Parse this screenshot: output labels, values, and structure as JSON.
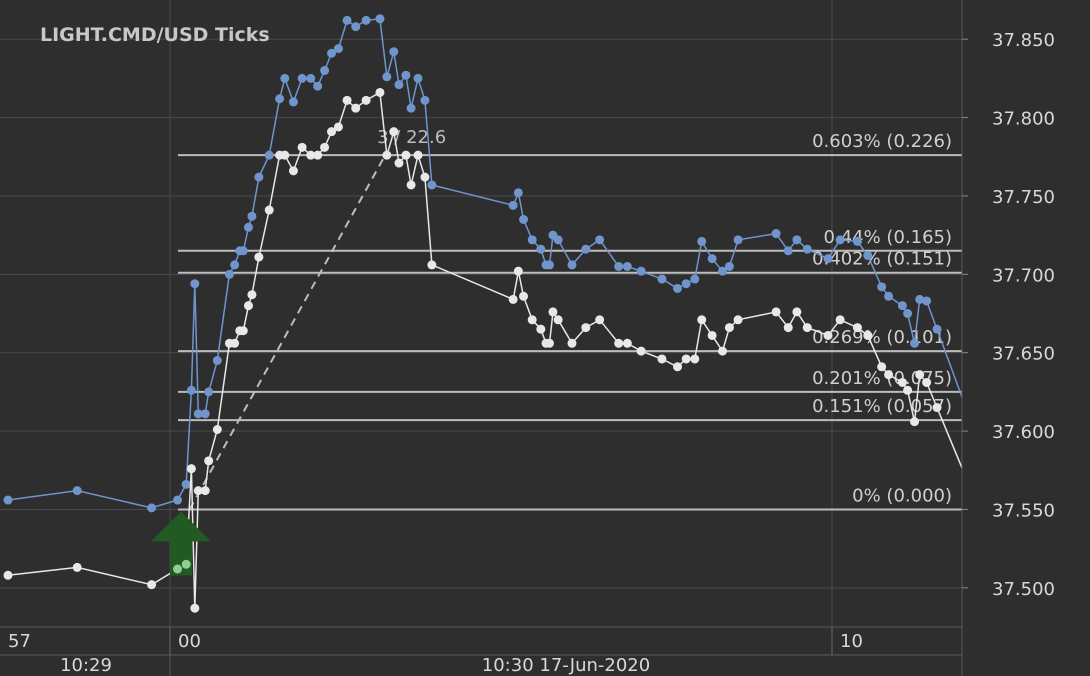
{
  "title": "LIGHT.CMD/USD  Ticks",
  "colors": {
    "background": "#2e2e2e",
    "grid": "#4a4a4a",
    "axis_text": "#d8d8d8",
    "ask_series": "#6f95cc",
    "bid_series": "#e8e8e8",
    "fib_line": "#bdbdbd",
    "buy_arrow": "#235a23"
  },
  "chart_data": {
    "type": "line",
    "title": "LIGHT.CMD/USD  Ticks",
    "ylim": [
      37.475,
      37.875
    ],
    "y_ticks": [
      37.85,
      37.8,
      37.75,
      37.7,
      37.65,
      37.6,
      37.55,
      37.5
    ],
    "y_tick_labels": [
      "37.850",
      "37.800",
      "37.750",
      "37.700",
      "37.650",
      "37.600",
      "37.550",
      "37.500"
    ],
    "x_time_labels": [
      "57",
      "00",
      "10"
    ],
    "x_date_labels": [
      "10:29",
      "10:30 17-Jun-2020"
    ],
    "grid": true,
    "series": [
      {
        "values": [
          [
            0.0,
            37.556
          ],
          [
            4.0,
            37.562
          ],
          [
            8.3,
            37.551
          ],
          [
            9.8,
            37.556
          ],
          [
            10.3,
            37.566
          ],
          [
            10.6,
            37.626
          ],
          [
            10.8,
            37.694
          ],
          [
            11.0,
            37.611
          ],
          [
            11.4,
            37.611
          ],
          [
            11.6,
            37.625
          ],
          [
            12.1,
            37.645
          ],
          [
            12.8,
            37.7
          ],
          [
            13.1,
            37.706
          ],
          [
            13.4,
            37.715
          ],
          [
            13.6,
            37.715
          ],
          [
            13.9,
            37.73
          ],
          [
            14.1,
            37.737
          ],
          [
            14.5,
            37.762
          ],
          [
            15.1,
            37.776
          ],
          [
            15.7,
            37.812
          ],
          [
            16.0,
            37.825
          ],
          [
            16.5,
            37.81
          ],
          [
            17.0,
            37.825
          ],
          [
            17.5,
            37.825
          ],
          [
            17.9,
            37.82
          ],
          [
            18.3,
            37.83
          ],
          [
            18.7,
            37.841
          ],
          [
            19.1,
            37.844
          ],
          [
            19.6,
            37.862
          ],
          [
            20.1,
            37.858
          ],
          [
            20.7,
            37.862
          ],
          [
            21.5,
            37.863
          ],
          [
            21.9,
            37.826
          ],
          [
            22.3,
            37.842
          ],
          [
            22.6,
            37.821
          ],
          [
            23.0,
            37.827
          ],
          [
            23.3,
            37.806
          ],
          [
            23.7,
            37.825
          ],
          [
            24.1,
            37.811
          ],
          [
            24.5,
            37.757
          ],
          [
            29.2,
            37.744
          ],
          [
            29.5,
            37.752
          ],
          [
            29.8,
            37.735
          ],
          [
            30.3,
            37.722
          ],
          [
            30.8,
            37.716
          ],
          [
            31.1,
            37.706
          ],
          [
            31.3,
            37.706
          ],
          [
            31.5,
            37.725
          ],
          [
            31.8,
            37.722
          ],
          [
            32.6,
            37.706
          ],
          [
            33.4,
            37.716
          ],
          [
            34.2,
            37.722
          ],
          [
            35.3,
            37.705
          ],
          [
            35.8,
            37.705
          ],
          [
            36.6,
            37.702
          ],
          [
            37.8,
            37.697
          ],
          [
            38.7,
            37.691
          ],
          [
            39.2,
            37.694
          ],
          [
            39.7,
            37.697
          ],
          [
            40.1,
            37.721
          ],
          [
            40.7,
            37.71
          ],
          [
            41.3,
            37.702
          ],
          [
            41.7,
            37.705
          ],
          [
            42.2,
            37.722
          ],
          [
            44.4,
            37.726
          ],
          [
            45.1,
            37.715
          ],
          [
            45.6,
            37.722
          ],
          [
            46.2,
            37.716
          ],
          [
            47.4,
            37.71
          ],
          [
            48.1,
            37.722
          ],
          [
            49.1,
            37.721
          ],
          [
            49.7,
            37.712
          ],
          [
            50.5,
            37.692
          ],
          [
            50.9,
            37.686
          ],
          [
            51.7,
            37.68
          ],
          [
            52.0,
            37.675
          ],
          [
            52.4,
            37.656
          ],
          [
            52.7,
            37.684
          ],
          [
            53.1,
            37.683
          ],
          [
            53.7,
            37.665
          ]
        ]
      },
      {
        "values": [
          [
            0.0,
            37.508
          ],
          [
            4.0,
            37.513
          ],
          [
            8.3,
            37.502
          ],
          [
            9.8,
            37.512
          ],
          [
            10.3,
            37.515
          ],
          [
            10.6,
            37.576
          ],
          [
            10.8,
            37.487
          ],
          [
            11.0,
            37.562
          ],
          [
            11.4,
            37.562
          ],
          [
            11.6,
            37.581
          ],
          [
            12.1,
            37.601
          ],
          [
            12.8,
            37.656
          ],
          [
            13.1,
            37.656
          ],
          [
            13.4,
            37.664
          ],
          [
            13.6,
            37.664
          ],
          [
            13.9,
            37.68
          ],
          [
            14.1,
            37.687
          ],
          [
            14.5,
            37.711
          ],
          [
            15.1,
            37.741
          ],
          [
            15.7,
            37.776
          ],
          [
            16.0,
            37.776
          ],
          [
            16.5,
            37.766
          ],
          [
            17.0,
            37.781
          ],
          [
            17.5,
            37.776
          ],
          [
            17.9,
            37.776
          ],
          [
            18.3,
            37.781
          ],
          [
            18.7,
            37.791
          ],
          [
            19.1,
            37.794
          ],
          [
            19.6,
            37.811
          ],
          [
            20.1,
            37.806
          ],
          [
            20.7,
            37.811
          ],
          [
            21.5,
            37.816
          ],
          [
            21.9,
            37.776
          ],
          [
            22.3,
            37.791
          ],
          [
            22.6,
            37.771
          ],
          [
            23.0,
            37.776
          ],
          [
            23.3,
            37.757
          ],
          [
            23.7,
            37.776
          ],
          [
            24.1,
            37.762
          ],
          [
            24.5,
            37.706
          ],
          [
            29.2,
            37.684
          ],
          [
            29.5,
            37.702
          ],
          [
            29.8,
            37.686
          ],
          [
            30.3,
            37.671
          ],
          [
            30.8,
            37.665
          ],
          [
            31.1,
            37.656
          ],
          [
            31.3,
            37.656
          ],
          [
            31.5,
            37.676
          ],
          [
            31.8,
            37.671
          ],
          [
            32.6,
            37.656
          ],
          [
            33.4,
            37.666
          ],
          [
            34.2,
            37.671
          ],
          [
            35.3,
            37.656
          ],
          [
            35.8,
            37.656
          ],
          [
            36.6,
            37.651
          ],
          [
            37.8,
            37.646
          ],
          [
            38.7,
            37.641
          ],
          [
            39.2,
            37.646
          ],
          [
            39.7,
            37.646
          ],
          [
            40.1,
            37.671
          ],
          [
            40.7,
            37.661
          ],
          [
            41.3,
            37.651
          ],
          [
            41.7,
            37.666
          ],
          [
            42.2,
            37.671
          ],
          [
            44.4,
            37.676
          ],
          [
            45.1,
            37.666
          ],
          [
            45.6,
            37.676
          ],
          [
            46.2,
            37.666
          ],
          [
            47.4,
            37.661
          ],
          [
            48.1,
            37.671
          ],
          [
            49.1,
            37.666
          ],
          [
            49.7,
            37.661
          ],
          [
            50.5,
            37.641
          ],
          [
            50.9,
            37.636
          ],
          [
            51.7,
            37.631
          ],
          [
            52.0,
            37.626
          ],
          [
            52.4,
            37.606
          ],
          [
            52.7,
            37.636
          ],
          [
            53.1,
            37.631
          ],
          [
            53.7,
            37.615
          ]
        ]
      }
    ],
    "fib_levels": [
      {
        "price": 37.776,
        "label": "0.603% (0.226)"
      },
      {
        "price": 37.715,
        "label": "0.44% (0.165)"
      },
      {
        "price": 37.701,
        "label": "0.402% (0.151)"
      },
      {
        "price": 37.651,
        "label": "0.269% (0.101)"
      },
      {
        "price": 37.625,
        "label": "0.201% (0.075)"
      },
      {
        "price": 37.607,
        "label": "0.151% (0.057)"
      },
      {
        "price": 37.55,
        "label": "0% (0.000)"
      }
    ],
    "trend_line": {
      "from": [
        10.5,
        37.55
      ],
      "to": [
        21.8,
        37.776
      ],
      "label": "3 / 22.6"
    },
    "buy_marker": {
      "x": 10.0,
      "price": 37.55
    }
  }
}
